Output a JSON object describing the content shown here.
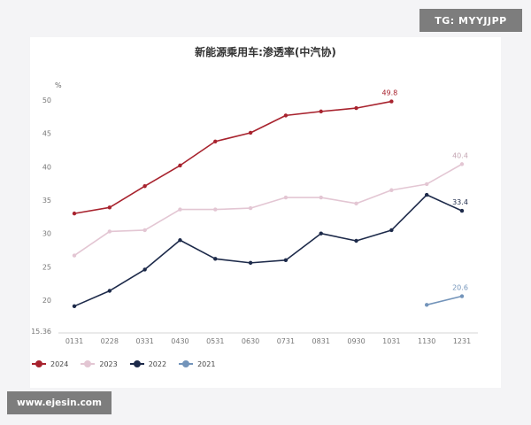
{
  "watermarks": {
    "top_right": "TG: MYYJJPP",
    "bottom_left": "www.ejesin.com"
  },
  "chart_data": {
    "type": "line",
    "title": "新能源乘用车:渗透率(中汽协)",
    "unit": "%",
    "categories": [
      "0131",
      "0228",
      "0331",
      "0430",
      "0531",
      "0630",
      "0731",
      "0831",
      "0930",
      "1031",
      "1130",
      "1231"
    ],
    "ylim": [
      15.36,
      52
    ],
    "yticks": [
      "15.36",
      "20",
      "25",
      "30",
      "35",
      "40",
      "45",
      "50"
    ],
    "grid": false,
    "legend_position": "bottom-left",
    "series": [
      {
        "name": "2024",
        "color": "#a8232e",
        "values": [
          33.0,
          33.9,
          37.1,
          40.2,
          43.8,
          45.1,
          47.7,
          48.3,
          48.8,
          49.8,
          null,
          null
        ]
      },
      {
        "name": "2023",
        "color": "#e3c6d3",
        "values": [
          26.7,
          30.3,
          30.5,
          33.6,
          33.6,
          33.8,
          35.4,
          35.4,
          34.5,
          36.5,
          37.4,
          40.4
        ]
      },
      {
        "name": "2022",
        "color": "#1d2a4a",
        "values": [
          19.1,
          21.4,
          24.6,
          29.0,
          26.2,
          25.6,
          26.0,
          30.0,
          28.9,
          30.5,
          35.8,
          33.4
        ]
      },
      {
        "name": "2021",
        "color": "#7394ba",
        "values": [
          null,
          null,
          null,
          null,
          null,
          null,
          null,
          null,
          null,
          null,
          19.3,
          20.6
        ]
      }
    ],
    "annotations": [
      {
        "series": "2024",
        "category": "1031",
        "text": "49.8"
      },
      {
        "series": "2023",
        "category": "1231",
        "text": "40.4"
      },
      {
        "series": "2022",
        "category": "1231",
        "text": "33.4"
      },
      {
        "series": "2021",
        "category": "1231",
        "text": "20.6"
      }
    ]
  }
}
